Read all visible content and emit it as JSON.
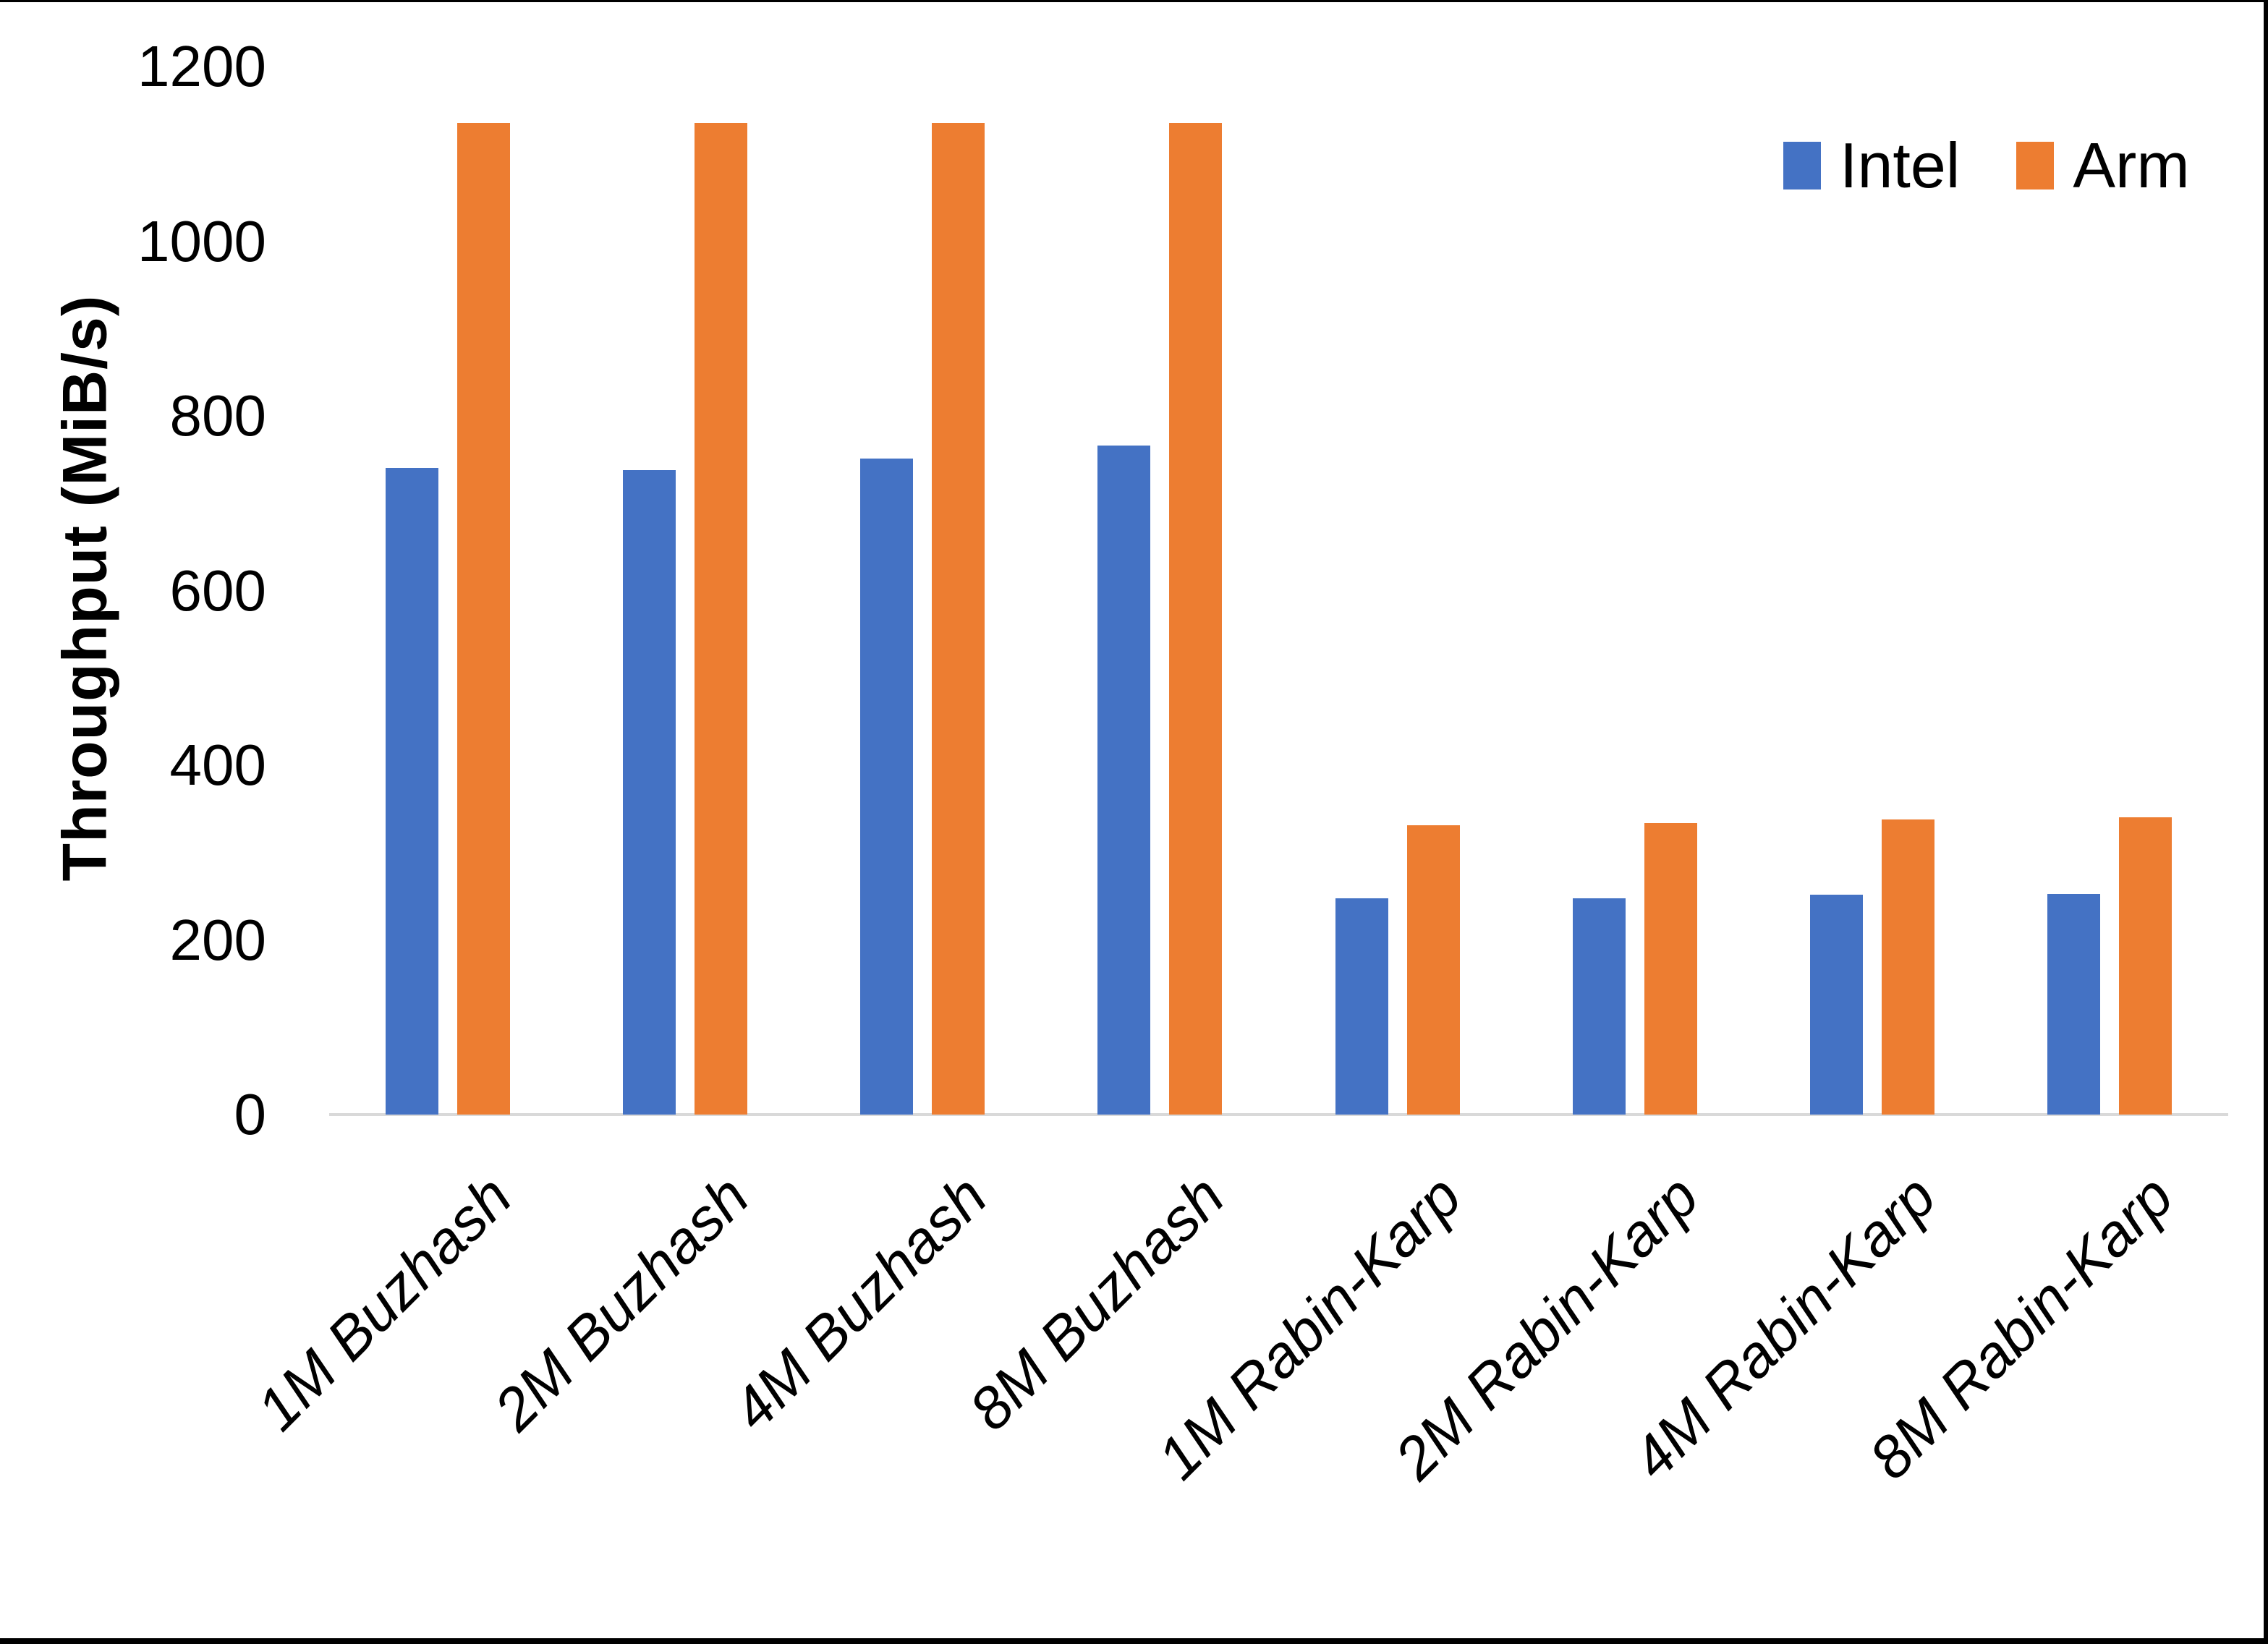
{
  "chart_data": {
    "type": "bar",
    "title": "",
    "xlabel": "",
    "ylabel": "Throughput (MiB/s)",
    "categories": [
      "1M Buzhash",
      "2M Buzhash",
      "4M Buzhash",
      "8M Buzhash",
      "1M Rabin-Karp",
      "2M Rabin-Karp",
      "4M Rabin-Karp",
      "8M Rabin-Karp"
    ],
    "series": [
      {
        "name": "Intel",
        "color": "#4472C4",
        "values": [
          740,
          738,
          751,
          766,
          248,
          248,
          252,
          253
        ]
      },
      {
        "name": "Arm",
        "color": "#ED7D31",
        "values": [
          1135,
          1135,
          1135,
          1135,
          331,
          334,
          338,
          340
        ]
      }
    ],
    "ylim": [
      0,
      1200
    ],
    "yticks": [
      0,
      200,
      400,
      600,
      800,
      1000,
      1200
    ],
    "grid": false,
    "legend_position": "top-right",
    "axis_line_color": "#D9D9D9",
    "text_color": "#000000"
  }
}
